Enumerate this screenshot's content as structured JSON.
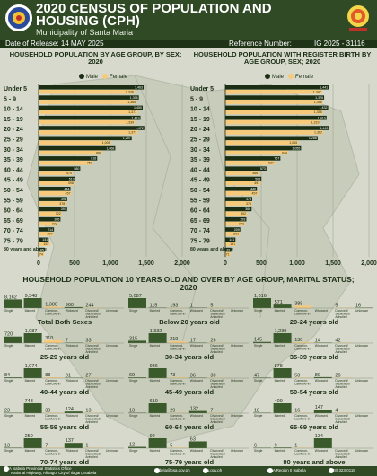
{
  "header": {
    "title_line1": "2020 CENSUS OF POPULATION AND",
    "title_line2": "HOUSING (CPH)",
    "municipality": "Municipality of Santa Maria",
    "date_label": "Date of Release: 14 MAY 2025",
    "ref_label": "Reference Number:",
    "ref_value": "IG 2025 - 31116"
  },
  "colors": {
    "male": "#3a5a2c",
    "female": "#f7c97a",
    "dark": "#1b2e14",
    "header": "#2f4a24"
  },
  "legend": {
    "male": "Male",
    "female": "Female"
  },
  "chart_data": [
    {
      "type": "bar",
      "orientation": "horizontal",
      "title": "HOUSEHOLD POPULATION BY AGE GROUP, BY SEX; 2020",
      "categories": [
        "Under 5",
        "5 - 9",
        "10 - 14",
        "15 - 19",
        "20 - 24",
        "25 - 29",
        "30 - 34",
        "35 - 39",
        "40 - 44",
        "45 - 49",
        "50 - 54",
        "55 - 59",
        "60 - 64",
        "65 - 69",
        "70 - 74",
        "75 - 79",
        "80 years and above"
      ],
      "series": [
        {
          "name": "Male",
          "values": [
            1463,
            1396,
            1450,
            1419,
            1472,
            1297,
            1068,
            816,
            580,
            510,
            444,
            398,
            397,
            305,
            214,
            141,
            85
          ]
        },
        {
          "name": "Female",
          "values": [
            1336,
            1365,
            1377,
            1339,
            1377,
            1008,
            888,
            759,
            474,
            498,
            457,
            378,
            322,
            274,
            207,
            157,
            74
          ]
        }
      ],
      "xlim": [
        0,
        2000
      ],
      "xticks": [
        "0",
        "500",
        "1,000",
        "1,500",
        "2,000"
      ]
    },
    {
      "type": "bar",
      "orientation": "horizontal",
      "title": "HOUSEHOLD POPULATION WITH REGISTER BIRTH BY AGE GROUP, SEX; 2020",
      "categories": [
        "Under 5",
        "5 - 9",
        "10 - 14",
        "15 - 19",
        "20 - 24",
        "25 - 29",
        "30 - 34",
        "35 - 39",
        "40 - 44",
        "45 - 49",
        "50 - 54",
        "55 - 59",
        "60 - 64",
        "65 - 69",
        "70 - 74",
        "75 - 79",
        "80 years and above"
      ],
      "series": [
        {
          "name": "Male",
          "values": [
            1441,
            1376,
            1432,
            1410,
            1443,
            1286,
            1055,
            767,
            573,
            503,
            440,
            375,
            366,
            293,
            209,
            141,
            81
          ]
        },
        {
          "name": "Female",
          "values": [
            1347,
            1358,
            1358,
            1319,
            1362,
            1015,
            874,
            687,
            466,
            491,
            457,
            375,
            302,
            273,
            201,
            151,
            71
          ]
        }
      ],
      "xlim": [
        0,
        2000
      ],
      "xticks": [
        "0",
        "500",
        "1,000",
        "1,500",
        "2,000"
      ]
    },
    {
      "type": "bar",
      "title": "HOUSEHOLD POPULATION 10 YEARS OLD AND OVER BY AGE GROUP, MARITAL STATUS; 2020",
      "categories": [
        "Single",
        "Married",
        "Common-Law/Live-in",
        "Widowed",
        "Divorced/Separated/Annulled",
        "Unknown"
      ],
      "panels": [
        {
          "label": "Total Both Sexes",
          "values": [
            8162,
            9348,
            1380,
            960,
            244,
            ""
          ]
        },
        {
          "label": "Below 20 years old",
          "values": [
            5087,
            115,
            193,
            1,
            5,
            ""
          ]
        },
        {
          "label": "20-24 years old",
          "values": [
            1616,
            571,
            388,
            "",
            5,
            16
          ]
        },
        {
          "label": "25-29 years old",
          "values": [
            720,
            1087,
            310,
            7,
            33,
            ""
          ]
        },
        {
          "label": "30-34 years old",
          "values": [
            315,
            1332,
            219,
            17,
            26,
            ""
          ]
        },
        {
          "label": "35-39 years old",
          "values": [
            145,
            1239,
            130,
            14,
            42,
            ""
          ]
        },
        {
          "label": "40-44 years old",
          "values": [
            84,
            1074,
            88,
            31,
            27,
            ""
          ]
        },
        {
          "label": "45-49 years old",
          "values": [
            69,
            936,
            73,
            36,
            30,
            ""
          ]
        },
        {
          "label": "50-54 years old",
          "values": [
            47,
            878,
            50,
            89,
            20,
            ""
          ]
        },
        {
          "label": "55-59 years old",
          "values": [
            23,
            743,
            39,
            124,
            13,
            ""
          ]
        },
        {
          "label": "60-64 years old",
          "values": [
            13,
            610,
            29,
            132,
            7,
            ""
          ]
        },
        {
          "label": "65-69 years old",
          "values": [
            18,
            409,
            16,
            147,
            4,
            ""
          ]
        },
        {
          "label": "70-74 years old",
          "values": [
            13,
            259,
            7,
            137,
            1,
            ""
          ]
        },
        {
          "label": "75-79 years old",
          "values": [
            12,
            92,
            5,
            63,
            "",
            ""
          ]
        },
        {
          "label": "80 years and above",
          "values": [
            6,
            9,
            1,
            134,
            "",
            ""
          ]
        }
      ]
    }
  ],
  "footer": {
    "office": "PSA Isabela Provincial Statistics Office",
    "address": "National Highway, Alibagu, City of Ilagan, Isabela",
    "email": "isabela@psa.gov.ph",
    "web": "psa.gov.ph",
    "fb": "PSA Region II Isabela",
    "phone": "(078) 323-0119"
  }
}
